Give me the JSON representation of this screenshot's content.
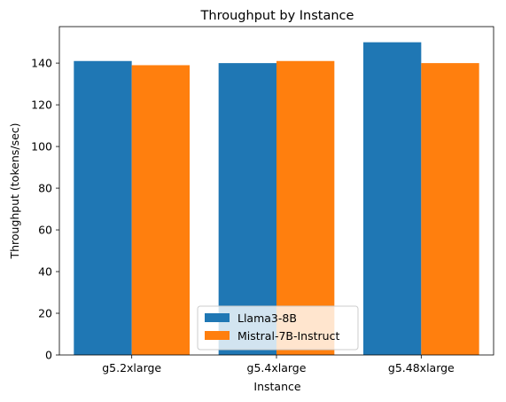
{
  "chart_data": {
    "type": "bar",
    "title": "Throughput by Instance",
    "xlabel": "Instance",
    "ylabel": "Throughput (tokens/sec)",
    "categories": [
      "g5.2xlarge",
      "g5.4xlarge",
      "g5.48xlarge"
    ],
    "series": [
      {
        "name": "Llama3-8B",
        "values": [
          141,
          140,
          150
        ],
        "color": "#1f77b4"
      },
      {
        "name": "Mistral-7B-Instruct",
        "values": [
          139,
          141,
          140
        ],
        "color": "#ff7f0e"
      }
    ],
    "ylim": [
      0,
      157.5
    ],
    "yticks": [
      0,
      20,
      40,
      60,
      80,
      100,
      120,
      140
    ],
    "grid": false,
    "legend_position": "lower-center"
  }
}
